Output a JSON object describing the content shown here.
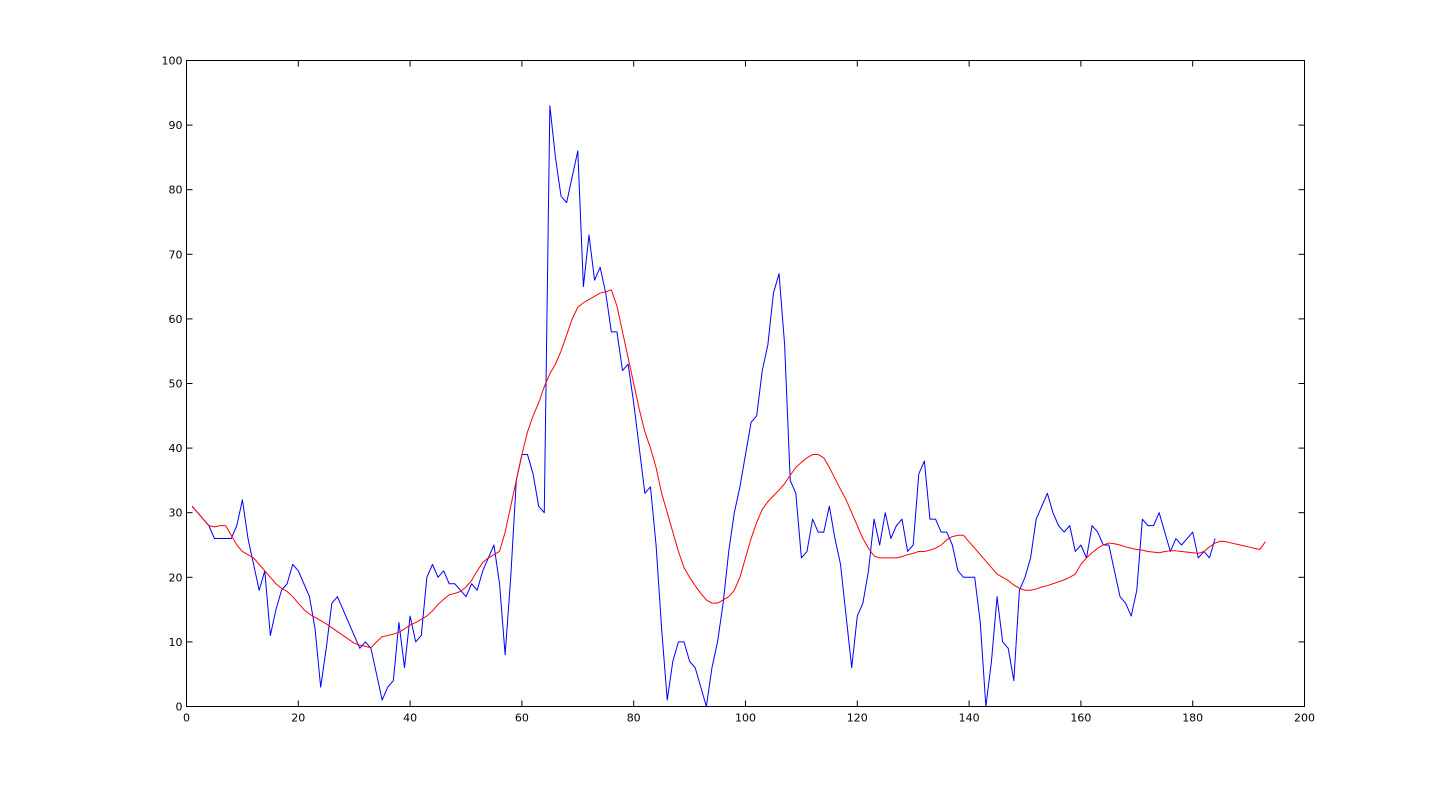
{
  "figure": {
    "background": "#ffffff",
    "axes_color": "#000000"
  },
  "chart_data": {
    "type": "line",
    "title": "",
    "xlabel": "",
    "ylabel": "",
    "xlim": [
      0,
      200
    ],
    "ylim": [
      0,
      100
    ],
    "xticks": [
      0,
      20,
      40,
      60,
      80,
      100,
      120,
      140,
      160,
      180,
      200
    ],
    "yticks": [
      0,
      10,
      20,
      30,
      40,
      50,
      60,
      70,
      80,
      90,
      100
    ],
    "xtick_labels": [
      "0",
      "20",
      "40",
      "60",
      "80",
      "100",
      "120",
      "140",
      "160",
      "180",
      "200"
    ],
    "ytick_labels": [
      "0",
      "10",
      "20",
      "30",
      "40",
      "50",
      "60",
      "70",
      "80",
      "90",
      "100"
    ],
    "grid": false,
    "legend": false,
    "x_start": 1,
    "series": [
      {
        "color": "#0000ff",
        "values": [
          31,
          30,
          29,
          28,
          26,
          26,
          26,
          26,
          28,
          32,
          26,
          22,
          18,
          21,
          11,
          15,
          18,
          19,
          22,
          21,
          19,
          17,
          12,
          3,
          9,
          16,
          17,
          15,
          13,
          11,
          9,
          10,
          9,
          5,
          1,
          3,
          4,
          13,
          6,
          14,
          10,
          11,
          20,
          22,
          20,
          21,
          19,
          19,
          18,
          17,
          19,
          18,
          21,
          23,
          25,
          19,
          8,
          20,
          35,
          39,
          39,
          36,
          31,
          30,
          93,
          85,
          79,
          78,
          82,
          86,
          65,
          73,
          66,
          68,
          64,
          58,
          58,
          52,
          53,
          47,
          40,
          33,
          34,
          25,
          12,
          1,
          7,
          10,
          10,
          7,
          6,
          3,
          0,
          6,
          10,
          16,
          24,
          30,
          34,
          39,
          44,
          45,
          52,
          56,
          64,
          67,
          56,
          35,
          33,
          23,
          24,
          29,
          27,
          27,
          31,
          26,
          22,
          14,
          6,
          14,
          16,
          21,
          29,
          25,
          30,
          26,
          28,
          29,
          24,
          25,
          36,
          38,
          29,
          29,
          27,
          27,
          25,
          21,
          20,
          20,
          20,
          13,
          0,
          7,
          17,
          10,
          9,
          4,
          18,
          20,
          23,
          29,
          31,
          33,
          30,
          28,
          27,
          28,
          24,
          25,
          23,
          28,
          27,
          25,
          25,
          21,
          17,
          16,
          14,
          18,
          29,
          28,
          28,
          30,
          27,
          24,
          26,
          25,
          26,
          27,
          23,
          24,
          23,
          26
        ]
      },
      {
        "color": "#ff0000",
        "values": [
          31,
          30,
          29,
          28,
          27.8,
          28,
          28,
          26.5,
          25,
          24,
          23.5,
          23,
          22,
          21,
          20,
          19,
          18.3,
          17.8,
          17,
          16,
          15,
          14.3,
          13.8,
          13.3,
          12.8,
          12.2,
          11.6,
          11,
          10.4,
          9.8,
          9.5,
          9.3,
          9.1,
          10,
          10.8,
          11,
          11.2,
          11.5,
          12,
          12.6,
          13,
          13.5,
          14,
          14.8,
          15.8,
          16.6,
          17.3,
          17.5,
          17.8,
          18.5,
          19.5,
          21,
          22.3,
          23,
          23.5,
          24,
          27,
          31,
          35,
          39,
          42.5,
          45,
          47,
          49.5,
          51.5,
          53,
          55,
          57.5,
          60,
          61.8,
          62.5,
          63,
          63.5,
          64,
          64.2,
          64.5,
          62,
          58,
          54,
          50,
          46,
          42.5,
          40,
          37,
          33,
          30,
          27,
          24,
          21.5,
          20,
          18.7,
          17.5,
          16.5,
          16,
          16,
          16.5,
          17,
          18,
          20,
          23,
          26,
          28.5,
          30.5,
          31.7,
          32.6,
          33.5,
          34.5,
          35.8,
          37,
          37.8,
          38.5,
          39,
          39,
          38.5,
          37,
          35.3,
          33.6,
          32,
          30,
          28,
          26,
          24.5,
          23.3,
          23,
          23,
          23,
          23,
          23.2,
          23.5,
          23.7,
          24,
          24,
          24.2,
          24.5,
          25,
          25.8,
          26.3,
          26.5,
          26.5,
          25.5,
          24.5,
          23.5,
          22.5,
          21.5,
          20.5,
          20,
          19.5,
          18.8,
          18.3,
          18,
          18,
          18.2,
          18.5,
          18.7,
          19,
          19.3,
          19.6,
          20,
          20.5,
          22,
          23,
          23.8,
          24.5,
          25,
          25.3,
          25.2,
          25,
          24.7,
          24.5,
          24.3,
          24.2,
          24,
          23.9,
          23.8,
          24,
          24.1,
          24.1,
          24,
          23.9,
          23.8,
          23.7,
          24,
          24.7,
          25.3,
          25.6,
          25.5,
          25.3,
          25.1,
          24.9,
          24.7,
          24.5,
          24.3,
          25.5
        ]
      }
    ]
  }
}
